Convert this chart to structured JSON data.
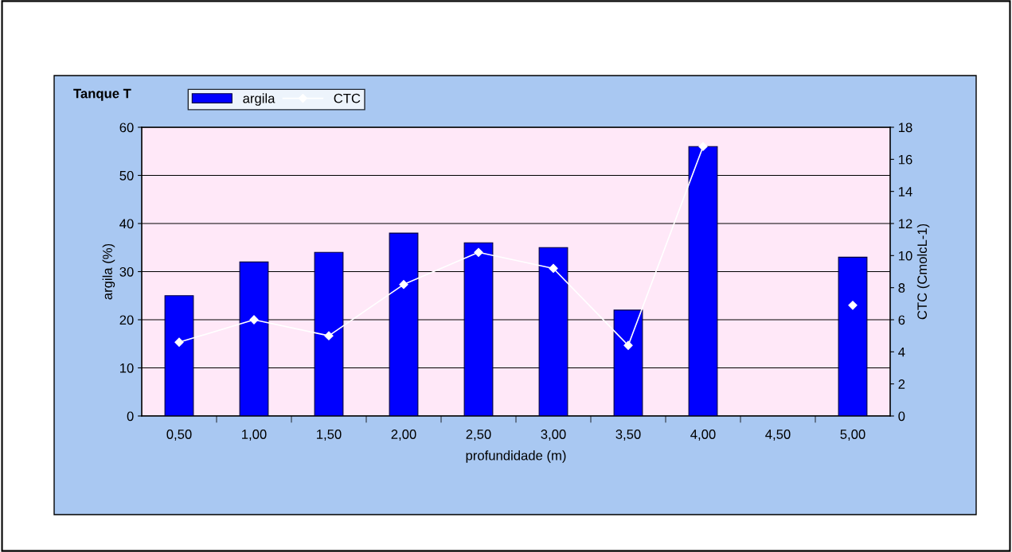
{
  "chart_data": {
    "type": "bar",
    "title": "Tanque T",
    "xlabel": "profundidade (m)",
    "ylabel": "argila (%)",
    "y2label": "CTC (CmolcL-1)",
    "categories": [
      "0,50",
      "1,00",
      "1,50",
      "2,00",
      "2,50",
      "3,00",
      "3,50",
      "4,00",
      "4,50",
      "5,00"
    ],
    "series": [
      {
        "name": "argila",
        "color": "#0000ff",
        "values": [
          25,
          32,
          34,
          38,
          36,
          35,
          22,
          56,
          null,
          33
        ]
      },
      {
        "name": "CTC",
        "type": "line",
        "axis": "y2",
        "color": "#ffffff",
        "marker": "diamond",
        "line_style": "solid",
        "values": [
          4.6,
          6.0,
          5.0,
          8.2,
          10.2,
          9.2,
          4.4,
          16.8,
          null,
          6.9
        ]
      }
    ],
    "ylim": [
      0,
      60
    ],
    "yticks": [
      0,
      10,
      20,
      30,
      40,
      50,
      60
    ],
    "y2lim": [
      0,
      18
    ],
    "y2ticks": [
      0,
      2,
      4,
      6,
      8,
      10,
      12,
      14,
      16,
      18
    ],
    "grid": "y",
    "legend": "top left"
  }
}
